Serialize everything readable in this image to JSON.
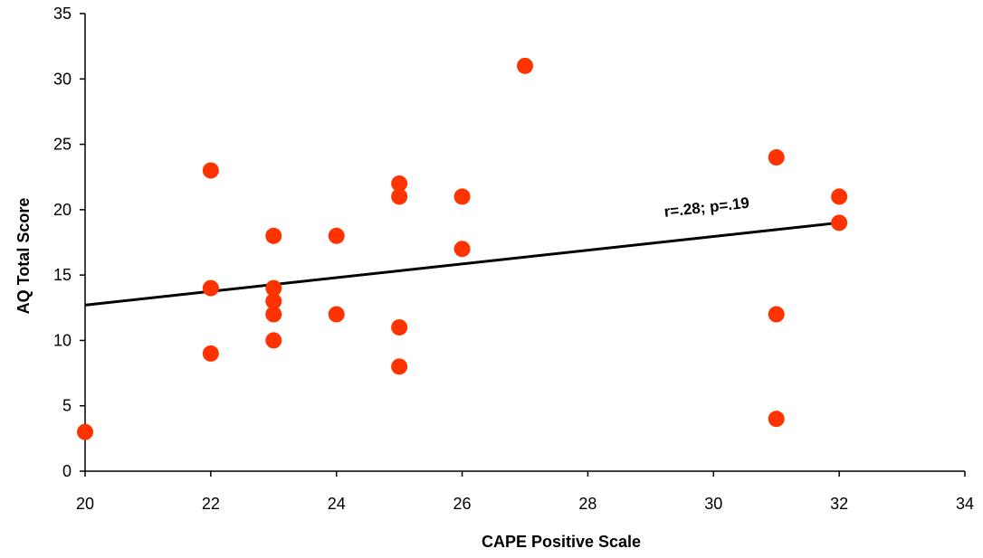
{
  "chart_data": {
    "type": "scatter",
    "title": "",
    "xlabel": "CAPE Positive Scale",
    "ylabel": "AQ Total Score",
    "xlim": [
      20,
      34
    ],
    "ylim": [
      0,
      35
    ],
    "x_ticks": [
      20,
      22,
      24,
      26,
      28,
      30,
      32,
      34
    ],
    "y_ticks": [
      0,
      5,
      10,
      15,
      20,
      25,
      30,
      35
    ],
    "grid": false,
    "legend": "none",
    "series": [
      {
        "color": "#ff3300",
        "points": [
          {
            "x": 20,
            "y": 3
          },
          {
            "x": 22,
            "y": 23
          },
          {
            "x": 22,
            "y": 14
          },
          {
            "x": 22,
            "y": 9
          },
          {
            "x": 23,
            "y": 18
          },
          {
            "x": 23,
            "y": 14
          },
          {
            "x": 23,
            "y": 13
          },
          {
            "x": 23,
            "y": 12
          },
          {
            "x": 23,
            "y": 10
          },
          {
            "x": 24,
            "y": 18
          },
          {
            "x": 24,
            "y": 12
          },
          {
            "x": 25,
            "y": 22
          },
          {
            "x": 25,
            "y": 21
          },
          {
            "x": 25,
            "y": 11
          },
          {
            "x": 25,
            "y": 8
          },
          {
            "x": 26,
            "y": 21
          },
          {
            "x": 26,
            "y": 17
          },
          {
            "x": 27,
            "y": 31
          },
          {
            "x": 31,
            "y": 24
          },
          {
            "x": 31,
            "y": 12
          },
          {
            "x": 31,
            "y": 4
          },
          {
            "x": 32,
            "y": 21
          },
          {
            "x": 32,
            "y": 19
          }
        ]
      }
    ],
    "trendline": {
      "x": [
        20,
        32
      ],
      "y": [
        12.7,
        19
      ],
      "color": "#000000"
    },
    "annotation": {
      "text": "r=.28; p=.19",
      "x": 29.9,
      "y": 19.8
    }
  }
}
